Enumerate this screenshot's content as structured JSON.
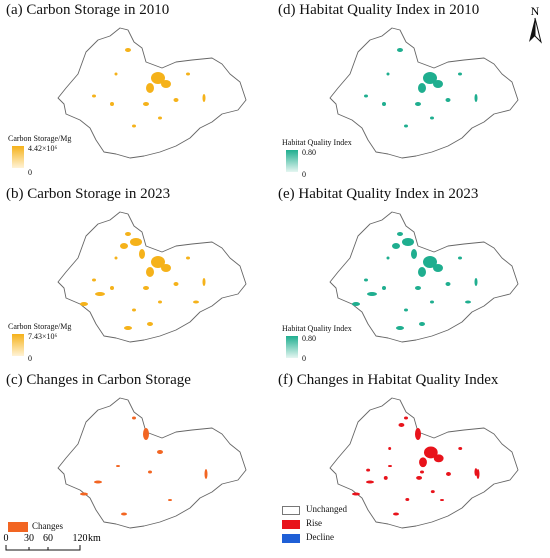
{
  "panels": {
    "a": {
      "title": "(a) Carbon Storage in 2010",
      "legend_title": "Carbon Storage/Mg",
      "max": "4.42×10⁶",
      "min": "0",
      "color": "#f5b21a"
    },
    "b": {
      "title": "(b) Carbon Storage in 2023",
      "legend_title": "Carbon Storage/Mg",
      "max": "7.43×10⁶",
      "min": "0",
      "color": "#f5b21a"
    },
    "c": {
      "title": "(c) Changes in Carbon Storage",
      "legend_label": "Changes",
      "color": "#f26522"
    },
    "d": {
      "title": "(d) Habitat Quality Index in 2010",
      "legend_title": "Habitat Quality Index",
      "max": "0.80",
      "min": "0",
      "color": "#1fae8f"
    },
    "e": {
      "title": "(e) Habitat Quality Index in 2023",
      "legend_title": "Habitat Quality Index",
      "max": "0.80",
      "min": "0",
      "color": "#1fae8f"
    },
    "f": {
      "title": "(f) Changes in Habitat Quality Index",
      "legend": [
        {
          "label": "Unchanged",
          "color": "#ffffff"
        },
        {
          "label": "Rise",
          "color": "#e8131b"
        },
        {
          "label": "Decline",
          "color": "#1f5fd6"
        }
      ]
    }
  },
  "north": {
    "label": "N"
  },
  "scale": {
    "labels": [
      "0",
      "30",
      "60",
      "120"
    ],
    "unit": "km"
  }
}
